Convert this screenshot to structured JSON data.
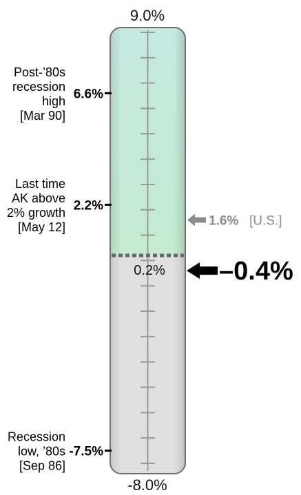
{
  "chart_data": {
    "type": "gauge",
    "scale": {
      "max": 9.0,
      "min": -8.0,
      "max_label": "9.0%",
      "min_label": "-8.0%",
      "tick_step": 1
    },
    "divider": {
      "value": 0.2,
      "label": "0.2%"
    },
    "current": {
      "value": -0.4,
      "label": "–0.4%"
    },
    "comparison": {
      "value": 1.6,
      "value_label": "1.6%",
      "label": "[U.S.]"
    },
    "markers": [
      {
        "value": 6.6,
        "value_label": "6.6%",
        "lines": [
          "Post-’80s",
          "recession",
          "high",
          "[Mar 90]"
        ]
      },
      {
        "value": 2.2,
        "value_label": "2.2%",
        "lines": [
          "Last time",
          "AK above",
          "2% growth",
          "[May 12]"
        ]
      },
      {
        "value": -7.5,
        "value_label": "-7.5%",
        "lines": [
          "Recession",
          "low, ’80s",
          "[Sep 86]"
        ]
      }
    ],
    "colors": {
      "upper_fill": "#bfe6da",
      "lower_fill": "#e0e0e0",
      "divider": "#666666",
      "current_arrow": "#000000",
      "comparison_arrow": "#8c8c8c",
      "tick": "#9a9a9a"
    }
  }
}
